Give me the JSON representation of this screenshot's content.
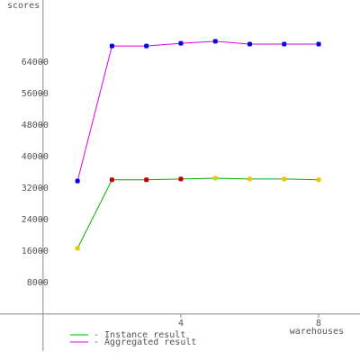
{
  "chart_data": {
    "type": "line",
    "ylabel": "scores",
    "xlabel": "warehouses",
    "x": [
      1,
      2,
      3,
      4,
      5,
      6,
      7,
      8
    ],
    "series": [
      {
        "name": "- Instance result",
        "color": "#00b000",
        "values": [
          16700,
          34100,
          34100,
          34300,
          34500,
          34300,
          34300,
          34100
        ],
        "point_colors": [
          "#e8c800",
          "#c00000",
          "#c00000",
          "#c00000",
          "#e8c800",
          "#e8c800",
          "#e8c800",
          "#e8c800"
        ]
      },
      {
        "name": "- Aggregated result",
        "color": "#e000e0",
        "values": [
          33800,
          68100,
          68100,
          68800,
          69300,
          68600,
          68600,
          68600
        ],
        "point_colors": [
          "#0000e0",
          "#0000e0",
          "#0000e0",
          "#0000e0",
          "#0000e0",
          "#0000e0",
          "#0000e0",
          "#0000e0"
        ]
      }
    ],
    "xlim": [
      -1.25,
      9.2
    ],
    "ylim": [
      -9400,
      79800
    ],
    "xticks": [
      4,
      8
    ],
    "yticks": [
      8000,
      16000,
      24000,
      32000,
      40000,
      48000,
      56000,
      64000
    ],
    "grid": false
  }
}
